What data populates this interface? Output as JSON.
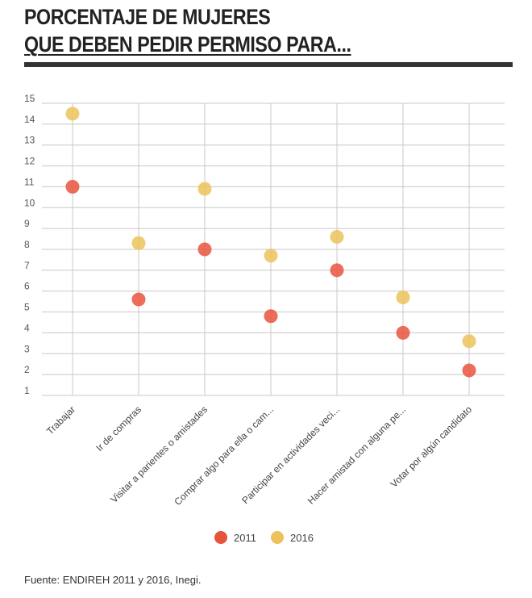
{
  "header": {
    "title_line1": "PORCENTAJE DE MUJERES",
    "title_line2": "QUE DEBEN PEDIR PERMISO PARA..."
  },
  "chart_data": {
    "type": "scatter",
    "categories": [
      "Trabajar",
      "Ir de compras",
      "Visitar a parientes o amistades",
      "Comprar algo para ella o cam...",
      "Participar en actividades veci...",
      "Hacer amistad con alguna pe...",
      "Votar por algún candidato"
    ],
    "series": [
      {
        "name": "2011",
        "color": "#e8533d",
        "values": [
          11.0,
          5.6,
          8.0,
          4.8,
          7.0,
          4.0,
          2.2
        ]
      },
      {
        "name": "2016",
        "color": "#ecc35a",
        "values": [
          14.5,
          8.3,
          10.9,
          7.7,
          8.6,
          5.7,
          3.6
        ]
      }
    ],
    "ylim": [
      1,
      15
    ],
    "yticks": [
      "1",
      "2",
      "3",
      "4",
      "5",
      "6",
      "7",
      "8",
      "9",
      "10",
      "11",
      "12",
      "13",
      "14",
      "15"
    ],
    "grid": true,
    "legend_position": "bottom"
  },
  "footer": {
    "source": "Fuente: ENDIREH 2011 y 2016, Inegi."
  }
}
